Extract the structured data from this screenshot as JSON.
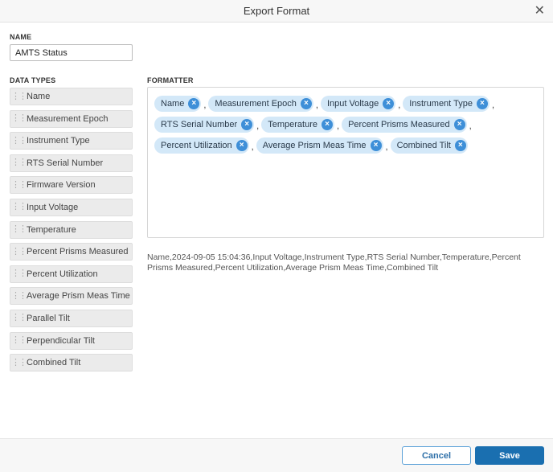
{
  "dialog": {
    "title": "Export Format",
    "close_icon": "close-icon"
  },
  "name": {
    "label": "NAME",
    "value": "AMTS Status"
  },
  "data_types": {
    "label": "DATA TYPES",
    "items": [
      "Name",
      "Measurement Epoch",
      "Instrument Type",
      "RTS Serial Number",
      "Firmware Version",
      "Input Voltage",
      "Temperature",
      "Percent Prisms Measured",
      "Percent Utilization",
      "Average Prism Meas Time",
      "Parallel Tilt",
      "Perpendicular Tilt",
      "Combined Tilt"
    ]
  },
  "formatter": {
    "label": "FORMATTER",
    "separator": ",",
    "rows": [
      [
        "Name",
        "Measurement Epoch",
        "Input Voltage",
        "Instrument Type"
      ],
      [
        "RTS Serial Number",
        "Temperature",
        "Percent Prisms Measured"
      ],
      [
        "Percent Utilization",
        "Average Prism Meas Time",
        "Combined Tilt"
      ]
    ],
    "remove_icon": "×"
  },
  "preview": "Name,2024-09-05 15:04:36,Input Voltage,Instrument Type,RTS Serial Number,Temperature,Percent Prisms Measured,Percent Utilization,Average Prism Meas Time,Combined Tilt",
  "footer": {
    "cancel": "Cancel",
    "save": "Save"
  },
  "colors": {
    "accent": "#1a6fb0",
    "chip": "#d3e8f8",
    "chip_remove": "#3e8fd8"
  }
}
